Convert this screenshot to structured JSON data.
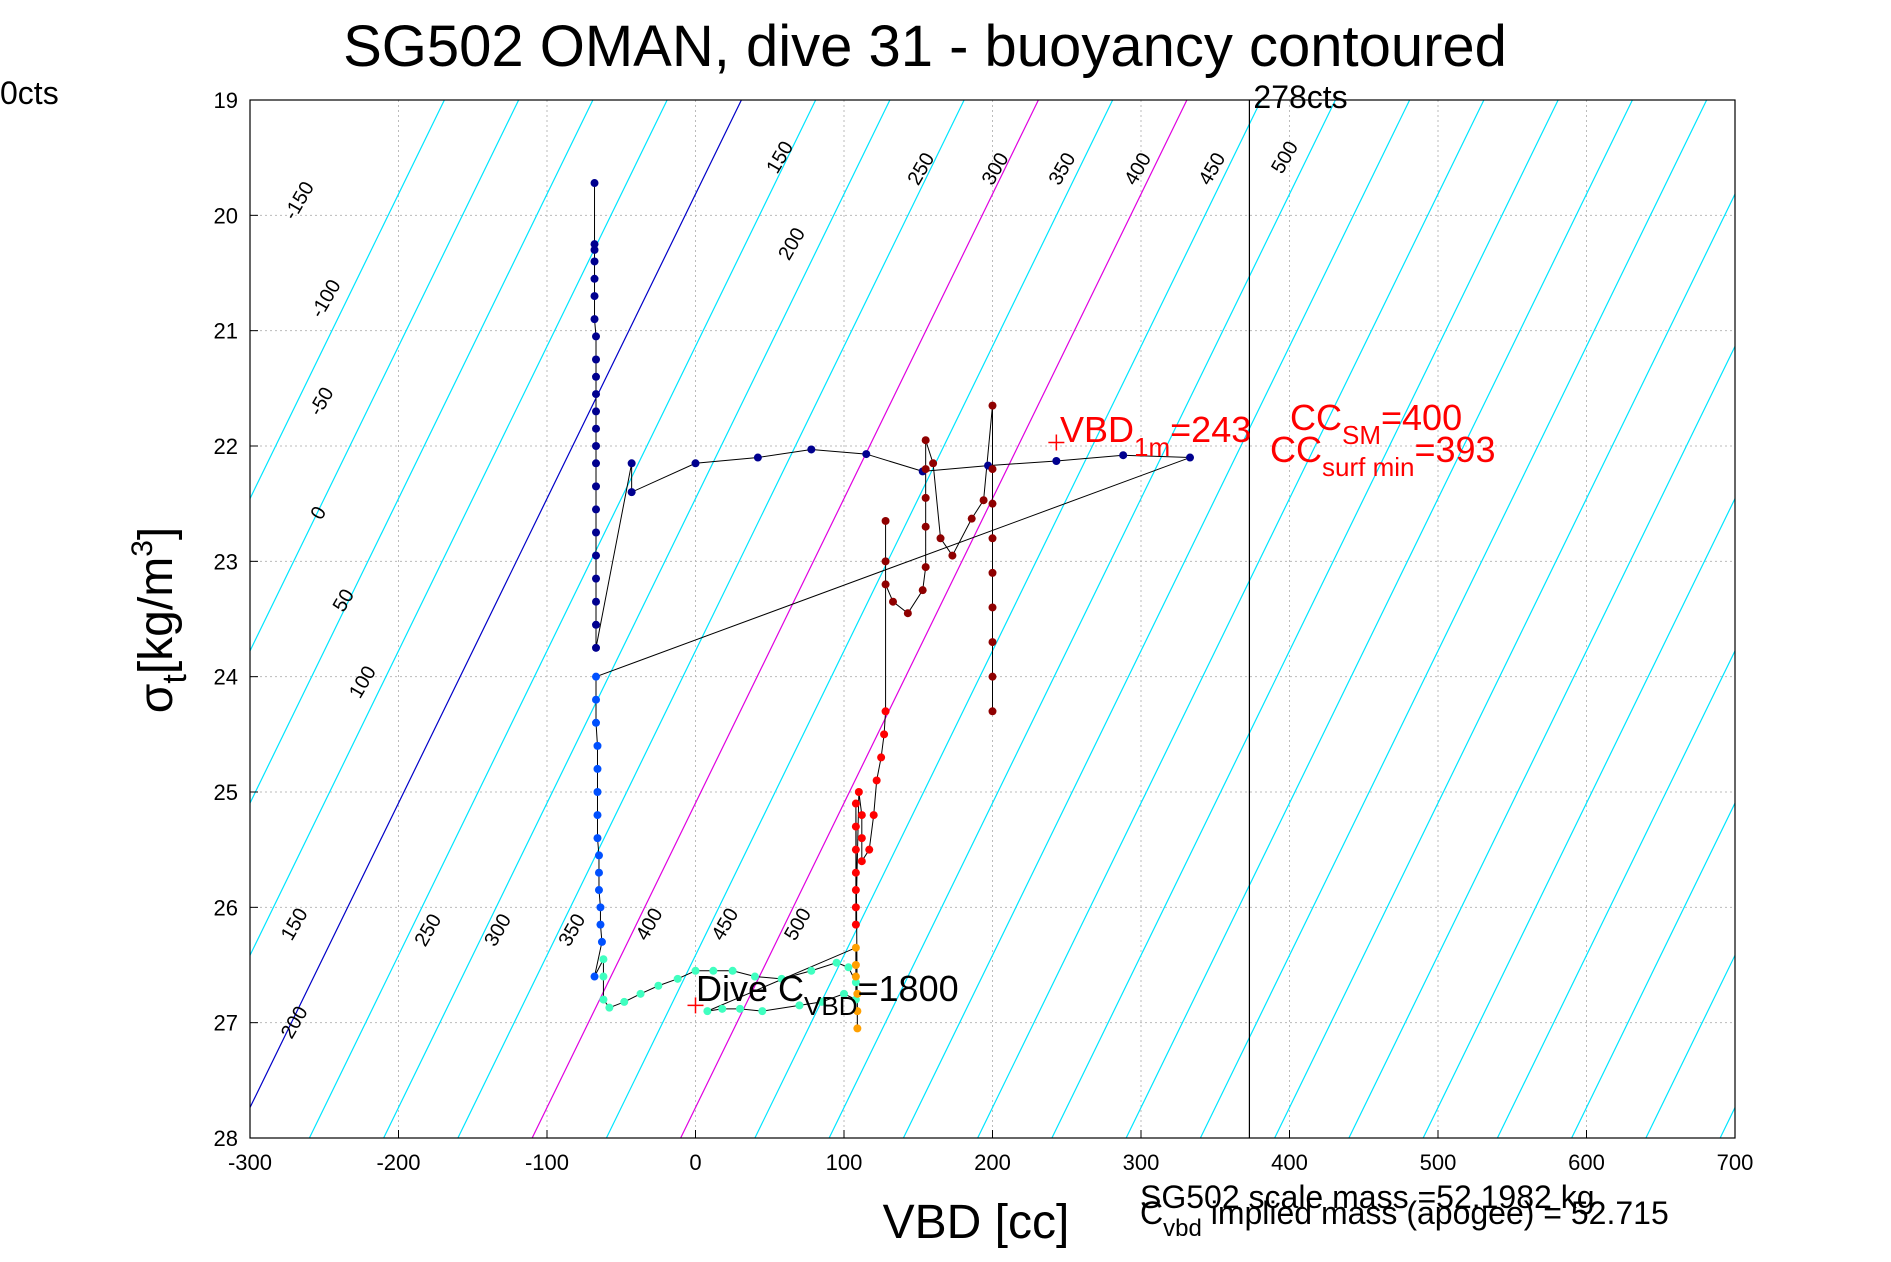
{
  "chart_data": {
    "type": "scatter",
    "title": "SG502 OMAN, dive 31 - buoyancy contoured",
    "xlabel": "VBD [cc]",
    "ylabel_main": "σ",
    "ylabel_sub": "t",
    "ylabel_unit": "[kg/m",
    "ylabel_sup": "3",
    "ylabel_close": "]",
    "xlim": [
      -300,
      700
    ],
    "ylim": [
      28,
      19
    ],
    "grid": true,
    "xticks": [
      -300,
      -200,
      -100,
      0,
      100,
      200,
      300,
      400,
      500,
      600,
      700
    ],
    "yticks": [
      19,
      20,
      21,
      22,
      23,
      24,
      25,
      26,
      27,
      28
    ],
    "contour_labels_upper": [
      {
        "x": -270,
        "y": 20.05,
        "text": "-150"
      },
      {
        "x": -252,
        "y": 20.9,
        "text": "-100"
      },
      {
        "x": -253,
        "y": 21.75,
        "text": "-50"
      },
      {
        "x": -252,
        "y": 22.65,
        "text": "0"
      },
      {
        "x": -237,
        "y": 23.45,
        "text": "50"
      },
      {
        "x": -226,
        "y": 24.2,
        "text": "100"
      },
      {
        "x": 55,
        "y": 19.65,
        "text": "150"
      },
      {
        "x": 63,
        "y": 20.4,
        "text": "200"
      },
      {
        "x": 150,
        "y": 19.75,
        "text": "250"
      },
      {
        "x": 200,
        "y": 19.75,
        "text": "300"
      },
      {
        "x": 245,
        "y": 19.75,
        "text": "350"
      },
      {
        "x": 296,
        "y": 19.75,
        "text": "400"
      },
      {
        "x": 346,
        "y": 19.75,
        "text": "450"
      },
      {
        "x": 395,
        "y": 19.65,
        "text": "500"
      }
    ],
    "contour_labels_lower": [
      {
        "x": -272,
        "y": 26.3,
        "text": "150"
      },
      {
        "x": -272,
        "y": 27.15,
        "text": "200"
      },
      {
        "x": -182,
        "y": 26.35,
        "text": "250"
      },
      {
        "x": -135,
        "y": 26.35,
        "text": "300"
      },
      {
        "x": -85,
        "y": 26.35,
        "text": "350"
      },
      {
        "x": -33,
        "y": 26.3,
        "text": "400"
      },
      {
        "x": 18,
        "y": 26.3,
        "text": "450"
      },
      {
        "x": 67,
        "y": 26.3,
        "text": "500"
      }
    ],
    "vertical_line": {
      "x": 373,
      "label": "278cts"
    },
    "left_edge_label": "0cts",
    "annotations": {
      "vbd1m_main": "VBD",
      "vbd1m_sub": "1m",
      "vbd1m_val": "=243",
      "ccsm_main": "CC",
      "ccsm_sub": "SM",
      "ccsm_val": "=400",
      "ccsurf_main": "CC",
      "ccsurf_sub": "surf min",
      "ccsurf_val": "=393",
      "dive_main": "Dive C",
      "dive_sub": "VBD",
      "dive_val": "=1800",
      "scale_mass": "SG502 scale mass =52.1982 kg",
      "cvbd_main": "C",
      "cvbd_sub": "vbd",
      "cvbd_text": " implied mass (apogee) = 52.715"
    },
    "markers": [
      {
        "x": 243,
        "y": 21.97
      },
      {
        "x": 0,
        "y": 26.85
      }
    ],
    "series": [
      {
        "color": "#00008f",
        "values": [
          [
            -68,
            19.72
          ],
          [
            -68,
            20.25
          ],
          [
            -68,
            20.3
          ],
          [
            -68,
            20.4
          ],
          [
            -68,
            20.55
          ],
          [
            -68,
            20.7
          ],
          [
            -68,
            20.9
          ],
          [
            -67,
            21.05
          ],
          [
            -67,
            21.25
          ],
          [
            -67,
            21.4
          ],
          [
            -67,
            21.55
          ],
          [
            -67,
            21.7
          ],
          [
            -67,
            21.85
          ],
          [
            -67,
            22.0
          ],
          [
            -67,
            22.15
          ],
          [
            -67,
            22.35
          ],
          [
            -67,
            22.55
          ],
          [
            -67,
            22.75
          ],
          [
            -67,
            22.95
          ],
          [
            -67,
            23.15
          ],
          [
            -67,
            23.35
          ],
          [
            -67,
            23.55
          ],
          [
            -67,
            23.75
          ],
          [
            -43,
            22.15
          ],
          [
            -43,
            22.4
          ],
          [
            0,
            22.15
          ],
          [
            42,
            22.1
          ],
          [
            78,
            22.03
          ],
          [
            115,
            22.07
          ],
          [
            153,
            22.22
          ],
          [
            197,
            22.17
          ],
          [
            243,
            22.13
          ],
          [
            288,
            22.08
          ],
          [
            333,
            22.1
          ]
        ]
      },
      {
        "color": "#0050ff",
        "values": [
          [
            -67,
            24.0
          ],
          [
            -67,
            24.2
          ],
          [
            -67,
            24.4
          ],
          [
            -66,
            24.6
          ],
          [
            -66,
            24.8
          ],
          [
            -66,
            25.0
          ],
          [
            -66,
            25.2
          ],
          [
            -66,
            25.4
          ],
          [
            -65,
            25.55
          ],
          [
            -65,
            25.7
          ],
          [
            -65,
            25.85
          ],
          [
            -64,
            26.0
          ],
          [
            -64,
            26.15
          ],
          [
            -63,
            26.3
          ],
          [
            -68,
            26.6
          ]
        ]
      },
      {
        "color": "#40ffc0",
        "values": [
          [
            -62,
            26.45
          ],
          [
            -62,
            26.6
          ],
          [
            -62,
            26.8
          ],
          [
            -58,
            26.87
          ],
          [
            -48,
            26.82
          ],
          [
            -37,
            26.75
          ],
          [
            -25,
            26.68
          ],
          [
            -12,
            26.62
          ],
          [
            0,
            26.55
          ],
          [
            12,
            26.55
          ],
          [
            25,
            26.55
          ],
          [
            40,
            26.6
          ],
          [
            58,
            26.62
          ],
          [
            78,
            26.55
          ],
          [
            95,
            26.48
          ],
          [
            103,
            26.52
          ],
          [
            108,
            26.65
          ],
          [
            108,
            26.8
          ],
          [
            100,
            26.75
          ],
          [
            85,
            26.82
          ],
          [
            70,
            26.85
          ],
          [
            45,
            26.9
          ],
          [
            30,
            26.88
          ],
          [
            18,
            26.88
          ],
          [
            8,
            26.9
          ]
        ]
      },
      {
        "color": "#ffa000",
        "values": [
          [
            108,
            26.35
          ],
          [
            108,
            26.5
          ],
          [
            108,
            26.6
          ],
          [
            109,
            26.75
          ],
          [
            109,
            26.9
          ],
          [
            109,
            27.05
          ]
        ]
      },
      {
        "color": "#ff0000",
        "values": [
          [
            108,
            25.1
          ],
          [
            108,
            25.3
          ],
          [
            108,
            25.5
          ],
          [
            108,
            25.7
          ],
          [
            108,
            25.85
          ],
          [
            108,
            26.0
          ],
          [
            108,
            26.15
          ],
          [
            110,
            25.0
          ],
          [
            112,
            25.2
          ],
          [
            112,
            25.4
          ],
          [
            112,
            25.6
          ],
          [
            117,
            25.5
          ],
          [
            120,
            25.2
          ],
          [
            122,
            24.9
          ],
          [
            125,
            24.7
          ],
          [
            127,
            24.5
          ],
          [
            128,
            24.3
          ]
        ]
      },
      {
        "color": "#8f0000",
        "values": [
          [
            128,
            22.65
          ],
          [
            128,
            23.0
          ],
          [
            128,
            23.2
          ],
          [
            133,
            23.35
          ],
          [
            143,
            23.45
          ],
          [
            153,
            23.25
          ],
          [
            155,
            23.05
          ],
          [
            155,
            22.7
          ],
          [
            155,
            22.45
          ],
          [
            155,
            22.2
          ],
          [
            155,
            21.95
          ],
          [
            160,
            22.15
          ],
          [
            165,
            22.8
          ],
          [
            173,
            22.95
          ],
          [
            186,
            22.63
          ],
          [
            194,
            22.47
          ],
          [
            200,
            21.65
          ],
          [
            200,
            22.2
          ],
          [
            200,
            22.5
          ],
          [
            200,
            22.8
          ],
          [
            200,
            23.1
          ],
          [
            200,
            23.4
          ],
          [
            200,
            23.7
          ],
          [
            200,
            24.0
          ],
          [
            200,
            24.3
          ]
        ]
      }
    ]
  }
}
